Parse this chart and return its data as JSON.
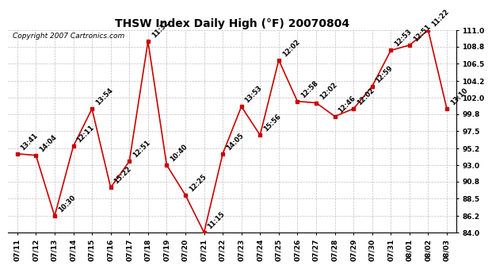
{
  "title": "THSW Index Daily High (°F) 20070804",
  "copyright": "Copyright 2007 Cartronics.com",
  "dates": [
    "07/11",
    "07/12",
    "07/13",
    "07/14",
    "07/15",
    "07/16",
    "07/17",
    "07/18",
    "07/19",
    "07/20",
    "07/21",
    "07/22",
    "07/23",
    "07/24",
    "07/25",
    "07/26",
    "07/27",
    "07/28",
    "07/29",
    "07/30",
    "07/31",
    "08/01",
    "08/02",
    "08/03"
  ],
  "values": [
    94.5,
    94.3,
    86.2,
    95.5,
    100.5,
    90.0,
    93.5,
    109.5,
    93.0,
    89.0,
    84.0,
    94.5,
    100.8,
    97.0,
    107.0,
    101.5,
    101.3,
    99.5,
    100.5,
    103.5,
    108.3,
    109.0,
    111.0,
    100.5
  ],
  "labels": [
    "13:41",
    "14:04",
    "10:30",
    "12:11",
    "13:54",
    "15:22",
    "12:51",
    "11:32",
    "10:40",
    "12:25",
    "11:15",
    "14:05",
    "13:53",
    "15:56",
    "12:02",
    "12:58",
    "12:02",
    "12:46",
    "12:02",
    "12:59",
    "12:53",
    "12:51",
    "11:22",
    "13:10"
  ],
  "ylim": [
    84.0,
    111.0
  ],
  "yticks": [
    84.0,
    86.2,
    88.5,
    90.8,
    93.0,
    95.2,
    97.5,
    99.8,
    102.0,
    104.2,
    106.5,
    108.8,
    111.0
  ],
  "line_color": "#cc0000",
  "marker_color": "#cc0000",
  "bg_color": "#ffffff",
  "plot_bg_color": "#ffffff",
  "grid_color": "#c0c0c0",
  "title_fontsize": 10,
  "copyright_fontsize": 6.5,
  "label_fontsize": 6,
  "tick_fontsize": 6.5
}
